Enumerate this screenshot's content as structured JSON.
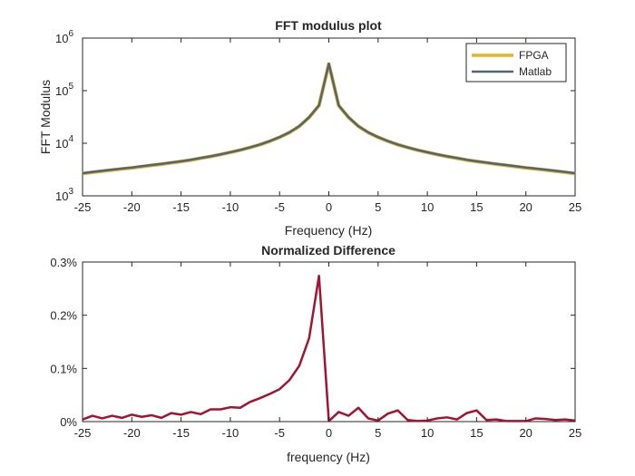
{
  "chart_data": [
    {
      "type": "line",
      "title": "FFT modulus plot",
      "xlabel": "Frequency (Hz)",
      "ylabel": "FFT Modulus",
      "xlim": [
        -25,
        25
      ],
      "ylim": [
        1000,
        1000000
      ],
      "yscale": "log",
      "xticks": [
        -25,
        -20,
        -15,
        -10,
        -5,
        0,
        5,
        10,
        15,
        20,
        25
      ],
      "yticks": [
        {
          "value": 1000,
          "base": "10",
          "exp": "3"
        },
        {
          "value": 10000,
          "base": "10",
          "exp": "4"
        },
        {
          "value": 100000,
          "base": "10",
          "exp": "5"
        },
        {
          "value": 1000000,
          "base": "10",
          "exp": "6"
        }
      ],
      "grid": false,
      "legend_position": "top-right",
      "series": [
        {
          "name": "FPGA",
          "color": "#EDB120",
          "x": [
            -25,
            -24,
            -23,
            -22,
            -21,
            -20,
            -19,
            -18,
            -17,
            -16,
            -15,
            -14,
            -13,
            -12,
            -11,
            -10,
            -9,
            -8,
            -7,
            -6,
            -5,
            -4,
            -3,
            -2,
            -1,
            0,
            1,
            2,
            3,
            4,
            5,
            6,
            7,
            8,
            9,
            10,
            11,
            12,
            13,
            14,
            15,
            16,
            17,
            18,
            19,
            20,
            21,
            22,
            23,
            24,
            25
          ],
          "y": [
            2650,
            2800,
            2950,
            3100,
            3250,
            3400,
            3600,
            3800,
            4000,
            4250,
            4500,
            4800,
            5200,
            5600,
            6100,
            6700,
            7400,
            8300,
            9400,
            10900,
            13000,
            16000,
            21000,
            31000,
            52000,
            320000,
            52000,
            31000,
            21000,
            16000,
            13000,
            10900,
            9400,
            8300,
            7400,
            6700,
            6100,
            5600,
            5200,
            4800,
            4500,
            4250,
            4000,
            3800,
            3600,
            3400,
            3250,
            3100,
            2950,
            2800,
            2650
          ]
        },
        {
          "name": "Matlab",
          "color": "#4F6677",
          "x": [
            -25,
            -24,
            -23,
            -22,
            -21,
            -20,
            -19,
            -18,
            -17,
            -16,
            -15,
            -14,
            -13,
            -12,
            -11,
            -10,
            -9,
            -8,
            -7,
            -6,
            -5,
            -4,
            -3,
            -2,
            -1,
            0,
            1,
            2,
            3,
            4,
            5,
            6,
            7,
            8,
            9,
            10,
            11,
            12,
            13,
            14,
            15,
            16,
            17,
            18,
            19,
            20,
            21,
            22,
            23,
            24,
            25
          ],
          "y": [
            2700,
            2850,
            3000,
            3150,
            3300,
            3450,
            3650,
            3850,
            4050,
            4300,
            4550,
            4850,
            5250,
            5650,
            6150,
            6750,
            7450,
            8350,
            9450,
            11000,
            13100,
            16100,
            21100,
            31200,
            52500,
            325000,
            52500,
            31200,
            21100,
            16100,
            13100,
            11000,
            9450,
            8350,
            7450,
            6750,
            6150,
            5650,
            5250,
            4850,
            4550,
            4300,
            4050,
            3850,
            3650,
            3450,
            3300,
            3150,
            3000,
            2850,
            2700
          ]
        }
      ]
    },
    {
      "type": "line",
      "title": "Normalized Difference",
      "xlabel": "frequency (Hz)",
      "ylabel": "",
      "xlim": [
        -25,
        25
      ],
      "ylim": [
        0,
        0.3
      ],
      "xticks": [
        -25,
        -20,
        -15,
        -10,
        -5,
        0,
        5,
        10,
        15,
        20,
        25
      ],
      "yticks": [
        {
          "value": 0,
          "label": "0%"
        },
        {
          "value": 0.1,
          "label": "0.1%"
        },
        {
          "value": 0.2,
          "label": "0.2%"
        },
        {
          "value": 0.3,
          "label": "0.3%"
        }
      ],
      "grid": false,
      "series": [
        {
          "color": "#A2142F",
          "x": [
            -25,
            -24,
            -23,
            -22,
            -21,
            -20,
            -19,
            -18,
            -17,
            -16,
            -15,
            -14,
            -13,
            -12,
            -11,
            -10,
            -9,
            -8,
            -7,
            -6,
            -5,
            -4,
            -3,
            -2,
            -1,
            0,
            1,
            2,
            3,
            4,
            5,
            6,
            7,
            8,
            9,
            10,
            11,
            12,
            13,
            14,
            15,
            16,
            17,
            18,
            19,
            20,
            21,
            22,
            23,
            24,
            25
          ],
          "y": [
            0.004,
            0.011,
            0.006,
            0.011,
            0.007,
            0.013,
            0.009,
            0.012,
            0.007,
            0.016,
            0.013,
            0.018,
            0.014,
            0.023,
            0.023,
            0.027,
            0.026,
            0.037,
            0.044,
            0.052,
            0.061,
            0.078,
            0.105,
            0.157,
            0.274,
            0.001,
            0.018,
            0.011,
            0.026,
            0.006,
            0.002,
            0.015,
            0.021,
            0.003,
            0.001,
            0.002,
            0.006,
            0.008,
            0.004,
            0.016,
            0.021,
            0.003,
            0.004,
            0.001,
            0.001,
            0.001,
            0.006,
            0.005,
            0.003,
            0.004,
            0.002
          ]
        }
      ]
    }
  ]
}
